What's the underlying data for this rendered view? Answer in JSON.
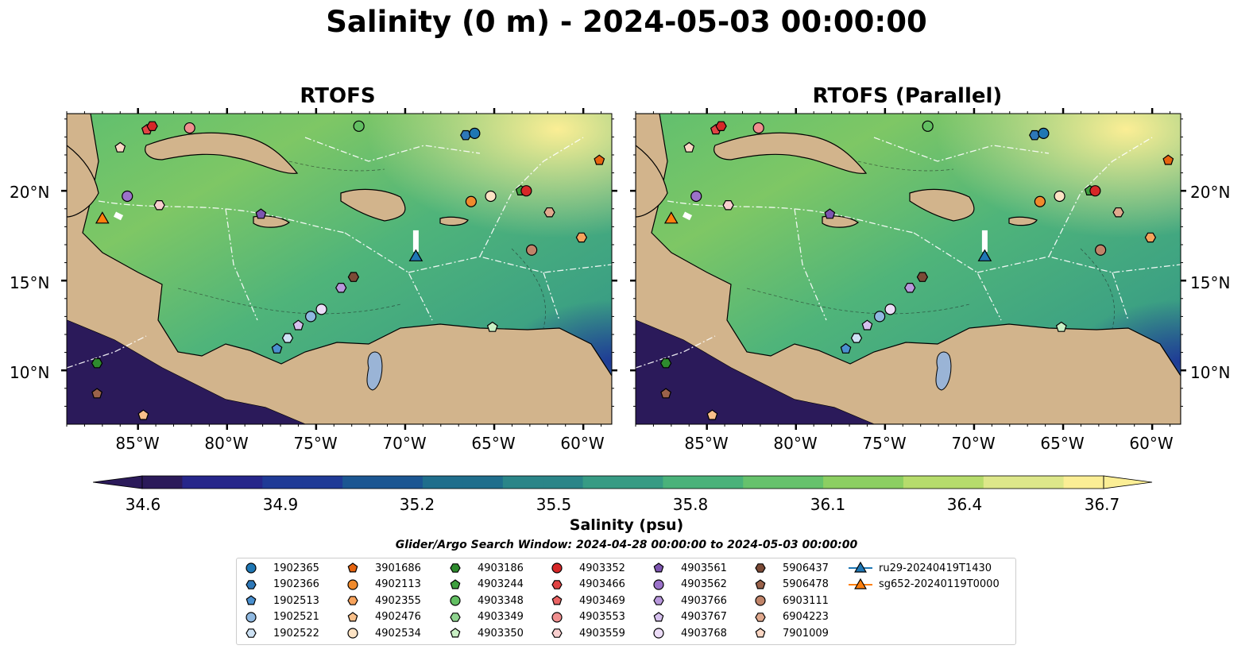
{
  "title": "Salinity (0 m) - 2024-05-03 00:00:00",
  "panels": [
    {
      "title": "RTOFS"
    },
    {
      "title": "RTOFS (Parallel)"
    }
  ],
  "axes": {
    "y_labels": [
      "20°N",
      "15°N",
      "10°N"
    ],
    "x_labels": [
      "85°W",
      "80°W",
      "75°W",
      "70°W",
      "65°W",
      "60°W"
    ]
  },
  "colorbar": {
    "label": "Salinity (psu)",
    "ticks": [
      "34.6",
      "34.9",
      "35.2",
      "35.5",
      "35.8",
      "36.1",
      "36.4",
      "36.7"
    ],
    "min": 34.6,
    "max": 36.7,
    "colormap": [
      "#2b1a5a",
      "#26268a",
      "#1f3a96",
      "#1b5692",
      "#1f6e8c",
      "#2a8588",
      "#379b84",
      "#4ab27a",
      "#66c26c",
      "#8ccf62",
      "#b6dc6c",
      "#dde78a",
      "#fbee95"
    ]
  },
  "search_window": "Glider/Argo Search Window: 2024-04-28 00:00:00 to 2024-05-03 00:00:00",
  "colors": {
    "land": "#d2b48c",
    "rivers": "#9ab4d6",
    "contours": "#ffffff"
  },
  "legend": {
    "items": [
      {
        "label": "1902365",
        "marker": "circle",
        "color": "#1f77b4"
      },
      {
        "label": "1902366",
        "marker": "hexagon",
        "color": "#2e78b8"
      },
      {
        "label": "1902513",
        "marker": "pentagon",
        "color": "#4a90cf"
      },
      {
        "label": "1902521",
        "marker": "circle",
        "color": "#8fb8e0"
      },
      {
        "label": "1902522",
        "marker": "hexagon",
        "color": "#cde1f3"
      },
      {
        "label": "3901686",
        "marker": "pentagon",
        "color": "#e6640f"
      },
      {
        "label": "4902113",
        "marker": "circle",
        "color": "#f08a2c"
      },
      {
        "label": "4902355",
        "marker": "hexagon",
        "color": "#f7a35c"
      },
      {
        "label": "4902476",
        "marker": "pentagon",
        "color": "#f9c08a"
      },
      {
        "label": "4902534",
        "marker": "circle",
        "color": "#fde3c4"
      },
      {
        "label": "4903186",
        "marker": "hexagon",
        "color": "#2e8b2e"
      },
      {
        "label": "4903244",
        "marker": "pentagon",
        "color": "#3fa03f"
      },
      {
        "label": "4903348",
        "marker": "circle",
        "color": "#62bf62"
      },
      {
        "label": "4903349",
        "marker": "hexagon",
        "color": "#8fd48f"
      },
      {
        "label": "4903350",
        "marker": "pentagon",
        "color": "#c9efc4"
      },
      {
        "label": "4903352",
        "marker": "circle",
        "color": "#d62728"
      },
      {
        "label": "4903466",
        "marker": "hexagon",
        "color": "#e04444"
      },
      {
        "label": "4903469",
        "marker": "pentagon",
        "color": "#ea6464"
      },
      {
        "label": "4903553",
        "marker": "circle",
        "color": "#f08f8f"
      },
      {
        "label": "4903559",
        "marker": "hexagon",
        "color": "#f9cfcf"
      },
      {
        "label": "4903561",
        "marker": "pentagon",
        "color": "#7d55b0"
      },
      {
        "label": "4903562",
        "marker": "circle",
        "color": "#9b72c9"
      },
      {
        "label": "4903766",
        "marker": "hexagon",
        "color": "#b898dc"
      },
      {
        "label": "4903767",
        "marker": "pentagon",
        "color": "#d6c1ee"
      },
      {
        "label": "4903768",
        "marker": "circle",
        "color": "#ecdcf7"
      },
      {
        "label": "5906437",
        "marker": "hexagon",
        "color": "#7b4a36"
      },
      {
        "label": "5906478",
        "marker": "pentagon",
        "color": "#9a624a"
      },
      {
        "label": "6903111",
        "marker": "circle",
        "color": "#c08469"
      },
      {
        "label": "6904223",
        "marker": "hexagon",
        "color": "#e0a98e"
      },
      {
        "label": "7901009",
        "marker": "pentagon",
        "color": "#fbd7c4"
      },
      {
        "label": "ru29-20240419T1430",
        "marker": "triangle",
        "color": "#1f77b4"
      },
      {
        "label": "sg652-20240119T0000",
        "marker": "triangle",
        "color": "#ff7f0e"
      }
    ]
  },
  "floats": [
    {
      "lon": -84.5,
      "lat": 23.4,
      "marker": "pentagon",
      "color": "#e04444"
    },
    {
      "lon": -84.2,
      "lat": 23.6,
      "marker": "hexagon",
      "color": "#d62728"
    },
    {
      "lon": -82.1,
      "lat": 23.5,
      "marker": "circle",
      "color": "#f08f8f"
    },
    {
      "lon": -72.6,
      "lat": 23.6,
      "marker": "circle",
      "color": "#62bf62"
    },
    {
      "lon": -66.6,
      "lat": 23.1,
      "marker": "hexagon",
      "color": "#2e78b8"
    },
    {
      "lon": -66.1,
      "lat": 23.2,
      "marker": "circle",
      "color": "#1f77b4"
    },
    {
      "lon": -59.1,
      "lat": 21.7,
      "marker": "pentagon",
      "color": "#e6640f"
    },
    {
      "lon": -86.0,
      "lat": 22.4,
      "marker": "pentagon",
      "color": "#fbd7c4"
    },
    {
      "lon": -85.6,
      "lat": 19.7,
      "marker": "circle",
      "color": "#9b72c9"
    },
    {
      "lon": -83.8,
      "lat": 19.2,
      "marker": "hexagon",
      "color": "#f9cfcf"
    },
    {
      "lon": -78.1,
      "lat": 18.7,
      "marker": "pentagon",
      "color": "#7d55b0"
    },
    {
      "lon": -66.3,
      "lat": 19.4,
      "marker": "circle",
      "color": "#f08a2c"
    },
    {
      "lon": -65.2,
      "lat": 19.7,
      "marker": "circle",
      "color": "#fde3c4"
    },
    {
      "lon": -63.5,
      "lat": 20.0,
      "marker": "pentagon",
      "color": "#3fa03f"
    },
    {
      "lon": -63.2,
      "lat": 20.0,
      "marker": "circle",
      "color": "#d62728"
    },
    {
      "lon": -61.9,
      "lat": 18.8,
      "marker": "hexagon",
      "color": "#e0a98e"
    },
    {
      "lon": -60.1,
      "lat": 17.4,
      "marker": "hexagon",
      "color": "#f7a35c"
    },
    {
      "lon": -62.9,
      "lat": 16.7,
      "marker": "circle",
      "color": "#c08469"
    },
    {
      "lon": -72.9,
      "lat": 15.2,
      "marker": "hexagon",
      "color": "#7b4a36"
    },
    {
      "lon": -73.6,
      "lat": 14.6,
      "marker": "hexagon",
      "color": "#b898dc"
    },
    {
      "lon": -74.7,
      "lat": 13.4,
      "marker": "circle",
      "color": "#ecdcf7"
    },
    {
      "lon": -75.3,
      "lat": 13.0,
      "marker": "circle",
      "color": "#8fb8e0"
    },
    {
      "lon": -76.0,
      "lat": 12.5,
      "marker": "pentagon",
      "color": "#d6c1ee"
    },
    {
      "lon": -76.6,
      "lat": 11.8,
      "marker": "hexagon",
      "color": "#cde1f3"
    },
    {
      "lon": -77.2,
      "lat": 11.2,
      "marker": "pentagon",
      "color": "#4a90cf"
    },
    {
      "lon": -65.1,
      "lat": 12.4,
      "marker": "pentagon",
      "color": "#c9efc4"
    },
    {
      "lon": -87.3,
      "lat": 10.4,
      "marker": "hexagon",
      "color": "#2e8b2e"
    },
    {
      "lon": -87.3,
      "lat": 8.7,
      "marker": "pentagon",
      "color": "#9a624a"
    },
    {
      "lon": -84.7,
      "lat": 7.5,
      "marker": "pentagon",
      "color": "#f9c08a"
    }
  ],
  "gliders": [
    {
      "lon": -69.4,
      "lat": 16.3,
      "color": "#1f77b4",
      "track": [
        [
          -69.4,
          17.8
        ],
        [
          -69.4,
          16.6
        ]
      ]
    },
    {
      "lon": -87.0,
      "lat": 18.4,
      "color": "#ff7f0e",
      "track": [
        [
          -86.3,
          18.7
        ],
        [
          -85.9,
          18.5
        ]
      ]
    }
  ]
}
